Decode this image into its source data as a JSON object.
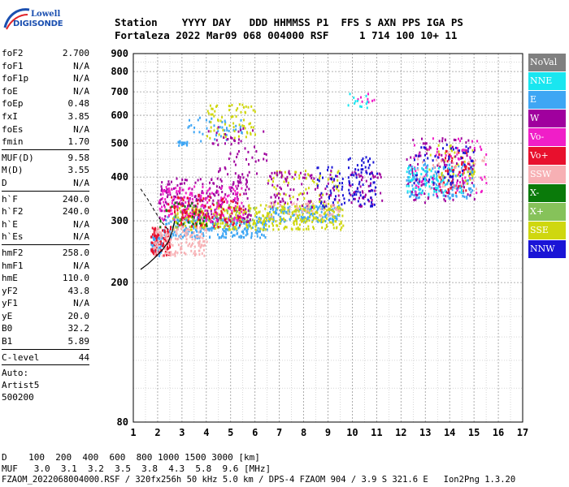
{
  "logo": {
    "line1": "Lowell",
    "line2": "DIGISONDE"
  },
  "header": {
    "line1": "Station    YYYY DAY   DDD HHMMSS P1  FFS S AXN PPS IGA PS",
    "line2": "Fortaleza 2022 Mar09 068 004000 RSF     1 714 100 10+ 11"
  },
  "params": {
    "group1": [
      {
        "k": "foF2",
        "v": "2.700"
      },
      {
        "k": "foF1",
        "v": "N/A"
      },
      {
        "k": "foF1p",
        "v": "N/A"
      },
      {
        "k": "foE",
        "v": "N/A"
      },
      {
        "k": "foEp",
        "v": "0.48"
      },
      {
        "k": "fxI",
        "v": "3.85"
      },
      {
        "k": "foEs",
        "v": "N/A"
      },
      {
        "k": "fmin",
        "v": "1.70"
      }
    ],
    "group2": [
      {
        "k": "MUF(D)",
        "v": "9.58"
      },
      {
        "k": "M(D)",
        "v": "3.55"
      },
      {
        "k": "D",
        "v": "N/A"
      }
    ],
    "group3": [
      {
        "k": "h`F",
        "v": "240.0"
      },
      {
        "k": "h`F2",
        "v": "240.0"
      },
      {
        "k": "h`E",
        "v": "N/A"
      },
      {
        "k": "h`Es",
        "v": "N/A"
      }
    ],
    "group4": [
      {
        "k": "hmF2",
        "v": "258.0"
      },
      {
        "k": "hmF1",
        "v": "N/A"
      },
      {
        "k": "hmE",
        "v": "110.0"
      },
      {
        "k": "yF2",
        "v": "43.8"
      },
      {
        "k": "yF1",
        "v": "N/A"
      },
      {
        "k": "yE",
        "v": "20.0"
      },
      {
        "k": "B0",
        "v": "32.2"
      },
      {
        "k": "B1",
        "v": "5.89"
      }
    ],
    "clevel": {
      "k": "C-level",
      "v": "44"
    },
    "auto": [
      "Auto:",
      "Artist5",
      "500200"
    ]
  },
  "footer": {
    "line1": "D    100  200  400  600  800 1000 1500 3000 [km]",
    "line2": "MUF   3.0  3.1  3.2  3.5  3.8  4.3  5.8  9.6 [MHz]",
    "line3": "FZAOM_2022068004000.RSF / 320fx256h 50 kHz 5.0 km / DPS-4 FZAOM 904 / 3.9 S 321.6 E   Ion2Png 1.3.20"
  },
  "legend": [
    {
      "label": "NoVal",
      "color": "#808080"
    },
    {
      "label": "NNE",
      "color": "#19e6f0"
    },
    {
      "label": "E",
      "color": "#3ea6f4"
    },
    {
      "label": "W",
      "color": "#a0009e"
    },
    {
      "label": "Vo-",
      "color": "#f01ec8"
    },
    {
      "label": "Vo+",
      "color": "#e8102d"
    },
    {
      "label": "SSW",
      "color": "#f7b0b4"
    },
    {
      "label": "X-",
      "color": "#0a7a0a"
    },
    {
      "label": "X+",
      "color": "#86c25a"
    },
    {
      "label": "SSE",
      "color": "#cfd70f"
    },
    {
      "label": "NNW",
      "color": "#1a14d6"
    }
  ],
  "chart_data": {
    "type": "scatter",
    "xlabel": "",
    "ylabel": "",
    "xlim": [
      1,
      17
    ],
    "ylim": [
      80,
      900
    ],
    "xticks": [
      1,
      2,
      3,
      4,
      5,
      6,
      7,
      8,
      9,
      10,
      11,
      12,
      13,
      14,
      15,
      16,
      17
    ],
    "yticks": [
      80,
      200,
      300,
      400,
      500,
      600,
      700,
      800,
      900
    ],
    "y_scale": "log",
    "grid": true,
    "legend_position": "right",
    "series": [
      {
        "color": "#3ea6f4",
        "clusters": [
          {
            "x": [
              1.7,
              2.2
            ],
            "y": [
              240,
              275
            ],
            "n": 60
          },
          {
            "x": [
              2.2,
              6.5
            ],
            "y": [
              270,
              310
            ],
            "n": 260
          },
          {
            "x": [
              6.5,
              9.5
            ],
            "y": [
              300,
              335
            ],
            "n": 140
          },
          {
            "x": [
              2.8,
              3.2
            ],
            "y": [
              495,
              510
            ],
            "n": 20
          },
          {
            "x": [
              3.2,
              5.6
            ],
            "y": [
              510,
              600
            ],
            "n": 40
          },
          {
            "x": [
              12.2,
              15.0
            ],
            "y": [
              350,
              440
            ],
            "n": 160
          }
        ]
      },
      {
        "color": "#cfd70f",
        "clusters": [
          {
            "x": [
              2.6,
              9.6
            ],
            "y": [
              285,
              335
            ],
            "n": 380
          },
          {
            "x": [
              4.0,
              6.0
            ],
            "y": [
              520,
              650
            ],
            "n": 70
          },
          {
            "x": [
              6.5,
              9.5
            ],
            "y": [
              330,
              420
            ],
            "n": 70
          },
          {
            "x": [
              13.0,
              15.0
            ],
            "y": [
              380,
              500
            ],
            "n": 50
          }
        ]
      },
      {
        "color": "#a0009e",
        "clusters": [
          {
            "x": [
              2.0,
              5.8
            ],
            "y": [
              300,
              400
            ],
            "n": 200
          },
          {
            "x": [
              4.0,
              6.5
            ],
            "y": [
              400,
              560
            ],
            "n": 60
          },
          {
            "x": [
              6.5,
              9.5
            ],
            "y": [
              330,
              420
            ],
            "n": 90
          },
          {
            "x": [
              9.8,
              11.2
            ],
            "y": [
              330,
              420
            ],
            "n": 50
          },
          {
            "x": [
              12.2,
              15.0
            ],
            "y": [
              340,
              520
            ],
            "n": 110
          }
        ]
      },
      {
        "color": "#f01ec8",
        "clusters": [
          {
            "x": [
              2.0,
              5.5
            ],
            "y": [
              300,
              380
            ],
            "n": 170
          },
          {
            "x": [
              12.5,
              15.5
            ],
            "y": [
              360,
              520
            ],
            "n": 70
          },
          {
            "x": [
              10.2,
              10.9
            ],
            "y": [
              640,
              700
            ],
            "n": 8
          }
        ]
      },
      {
        "color": "#e8102d",
        "clusters": [
          {
            "x": [
              1.7,
              2.5
            ],
            "y": [
              240,
              290
            ],
            "n": 90
          },
          {
            "x": [
              2.4,
              5.5
            ],
            "y": [
              290,
              360
            ],
            "n": 110
          },
          {
            "x": [
              13.5,
              14.8
            ],
            "y": [
              360,
              480
            ],
            "n": 50
          }
        ]
      },
      {
        "color": "#f7b0b4",
        "clusters": [
          {
            "x": [
              1.8,
              4.0
            ],
            "y": [
              240,
              290
            ],
            "n": 150
          },
          {
            "x": [
              6.5,
              9.5
            ],
            "y": [
              310,
              340
            ],
            "n": 40
          },
          {
            "x": [
              12.5,
              15.5
            ],
            "y": [
              370,
              480
            ],
            "n": 40
          }
        ]
      },
      {
        "color": "#1a14d6",
        "clusters": [
          {
            "x": [
              8.5,
              9.7
            ],
            "y": [
              330,
              430
            ],
            "n": 40
          },
          {
            "x": [
              9.8,
              11.0
            ],
            "y": [
              330,
              460
            ],
            "n": 70
          },
          {
            "x": [
              12.5,
              15.0
            ],
            "y": [
              380,
              500
            ],
            "n": 60
          }
        ]
      },
      {
        "color": "#0a7a0a",
        "clusters": [
          {
            "x": [
              2.0,
              4.0
            ],
            "y": [
              290,
              340
            ],
            "n": 30
          }
        ]
      },
      {
        "color": "#86c25a",
        "clusters": [
          {
            "x": [
              2.5,
              6.0
            ],
            "y": [
              290,
              340
            ],
            "n": 25
          }
        ]
      },
      {
        "color": "#19e6f0",
        "clusters": [
          {
            "x": [
              9.8,
              10.6
            ],
            "y": [
              630,
              700
            ],
            "n": 12
          },
          {
            "x": [
              12.2,
              14.5
            ],
            "y": [
              360,
              430
            ],
            "n": 60
          }
        ]
      }
    ]
  }
}
